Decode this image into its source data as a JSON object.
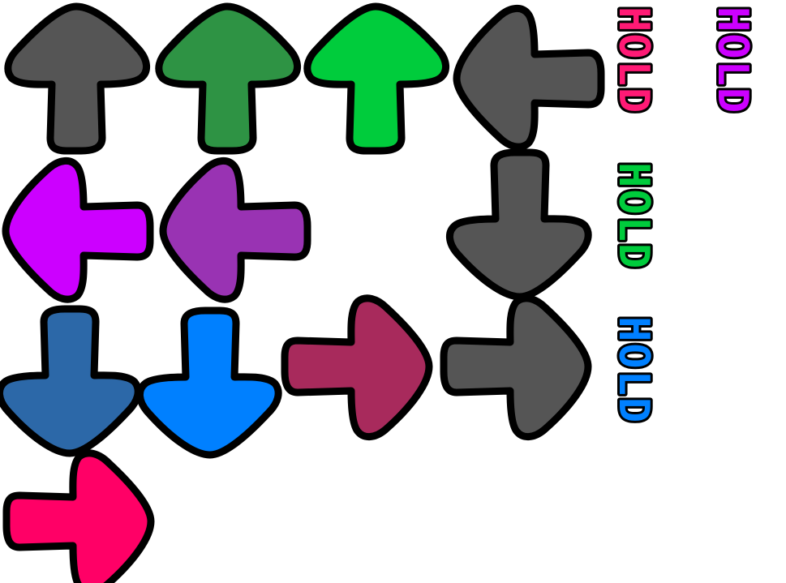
{
  "arrows": [
    {
      "name": "up-arrow-gray",
      "direction": "up",
      "color": "#555555"
    },
    {
      "name": "up-arrow-darkgreen",
      "direction": "up",
      "color": "#2e9344"
    },
    {
      "name": "up-arrow-green",
      "direction": "up",
      "color": "#00cc3c"
    },
    {
      "name": "left-arrow-gray",
      "direction": "left",
      "color": "#555555"
    },
    {
      "name": "left-arrow-magenta",
      "direction": "left",
      "color": "#cc00ff"
    },
    {
      "name": "left-arrow-purple",
      "direction": "left",
      "color": "#9933b3"
    },
    {
      "name": "down-arrow-gray",
      "direction": "down",
      "color": "#555555"
    },
    {
      "name": "down-arrow-steelblue",
      "direction": "down",
      "color": "#2c68a8"
    },
    {
      "name": "down-arrow-blue",
      "direction": "down",
      "color": "#0080ff"
    },
    {
      "name": "right-arrow-maroon",
      "direction": "right",
      "color": "#a82a5c"
    },
    {
      "name": "right-arrow-gray",
      "direction": "right",
      "color": "#555555"
    },
    {
      "name": "right-arrow-pink",
      "direction": "right",
      "color": "#ff0066"
    }
  ],
  "hold_labels": [
    {
      "name": "hold-label-pink",
      "text": "HOLD",
      "color": "#ff1a75"
    },
    {
      "name": "hold-label-magenta",
      "text": "HOLD",
      "color": "#cc00ff"
    },
    {
      "name": "hold-label-green",
      "text": "HOLD",
      "color": "#00cc3c"
    },
    {
      "name": "hold-label-blue",
      "text": "HOLD",
      "color": "#0080ff"
    }
  ]
}
